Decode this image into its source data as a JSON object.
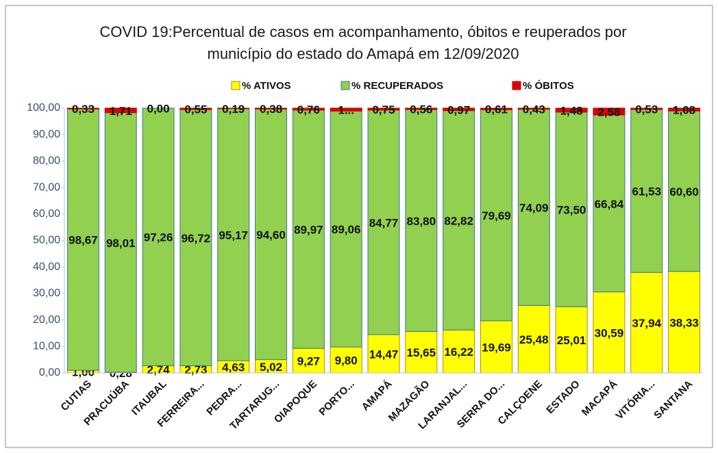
{
  "chart_data": {
    "type": "stacked_bar",
    "title": [
      "COVID 19:Percentual de casos em acompanhamento, óbitos e reuperados por",
      "município do estado do Amapá em 12/09/2020"
    ],
    "categories": [
      "CUTIAS",
      "PRACUÚBA",
      "ITAUBAL",
      "FERREIRA...",
      "PEDRA...",
      "TARTARUG...",
      "OIAPOQUE",
      "PORTO...",
      "AMAPÁ",
      "MAZAGÃO",
      "LARANJAL...",
      "SERRA DO...",
      "CALÇOENE",
      "ESTADO",
      "MACAPÁ",
      "VITÓRIA...",
      "SANTANA"
    ],
    "series": [
      {
        "name": "% ATIVOS",
        "color": "#ffff00",
        "edge": "#b8860b",
        "values": [
          1.0,
          0.28,
          2.74,
          2.73,
          4.63,
          5.02,
          9.27,
          9.8,
          14.47,
          15.65,
          16.22,
          19.69,
          25.48,
          25.01,
          30.59,
          37.94,
          38.33
        ],
        "value_labels": [
          "1,00",
          "0,28",
          "2,74",
          "2,73",
          "4,63",
          "5,02",
          "9,27",
          "9,80",
          "14,47",
          "15,65",
          "16,22",
          "19,69",
          "25,48",
          "25,01",
          "30,59",
          "37,94",
          "38,33"
        ]
      },
      {
        "name": "% RECUPERADOS",
        "color": "#92d050",
        "edge": "#41719c",
        "values": [
          98.67,
          98.01,
          97.26,
          96.72,
          95.17,
          94.6,
          89.97,
          89.06,
          84.77,
          83.8,
          82.82,
          79.69,
          74.09,
          73.5,
          66.84,
          61.53,
          60.6
        ],
        "value_labels": [
          "98,67",
          "98,01",
          "97,26",
          "96,72",
          "95,17",
          "94,60",
          "89,97",
          "89,06",
          "84,77",
          "83,80",
          "82,82",
          "79,69",
          "74,09",
          "73,50",
          "66,84",
          "61,53",
          "60,60"
        ]
      },
      {
        "name": "% ÓBITOS",
        "color": "#e00000",
        "edge": "#c00000",
        "values": [
          0.33,
          1.71,
          0.0,
          0.55,
          0.19,
          0.38,
          0.76,
          1.14,
          0.75,
          0.56,
          0.97,
          0.61,
          0.43,
          1.48,
          2.58,
          0.53,
          1.08
        ],
        "value_labels": [
          "0,33",
          "1,71",
          "0,00",
          "0,55",
          "0,19",
          "0,38",
          "0,76",
          "1...",
          "0,75",
          "0,56",
          "0,97",
          "0,61",
          "0,43",
          "1,48",
          "2,58",
          "0,53",
          "1,08"
        ]
      }
    ],
    "ylim": [
      0,
      100
    ],
    "yticks": [
      {
        "value": 0,
        "label": "0,00"
      },
      {
        "value": 10,
        "label": "10,00"
      },
      {
        "value": 20,
        "label": "20,00"
      },
      {
        "value": 30,
        "label": "30,00"
      },
      {
        "value": 40,
        "label": "40,00"
      },
      {
        "value": 50,
        "label": "50,00"
      },
      {
        "value": 60,
        "label": "60,00"
      },
      {
        "value": 70,
        "label": "70,00"
      },
      {
        "value": 80,
        "label": "80,00"
      },
      {
        "value": 90,
        "label": "90,00"
      },
      {
        "value": 100,
        "label": "100,00"
      }
    ],
    "legend": "top"
  }
}
